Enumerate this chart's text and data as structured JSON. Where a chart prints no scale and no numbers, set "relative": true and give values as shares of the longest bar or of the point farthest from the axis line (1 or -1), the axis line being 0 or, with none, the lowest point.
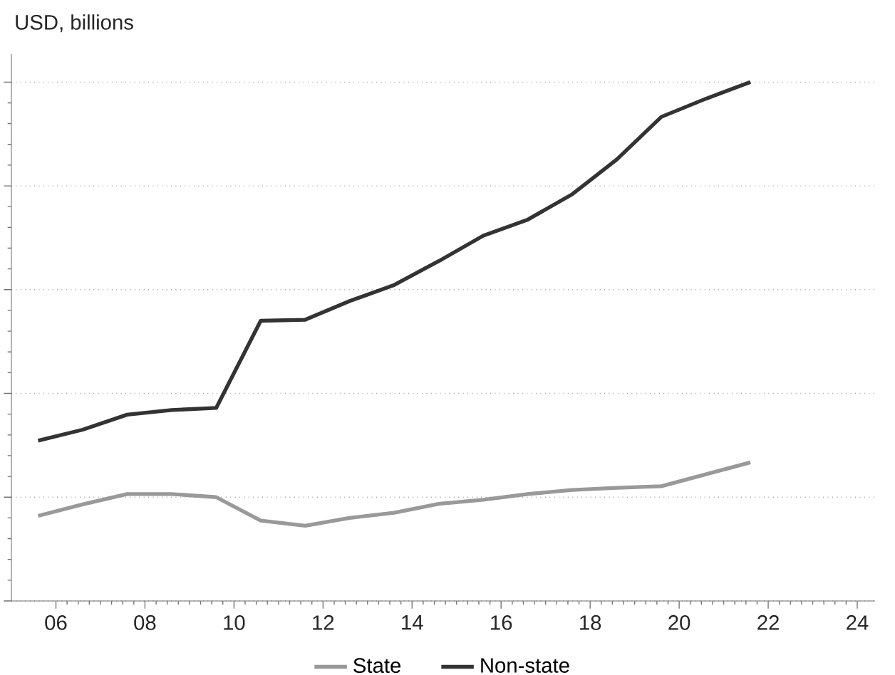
{
  "chart_data": {
    "type": "line",
    "ylabel": "USD, billions",
    "relative": true,
    "x": [
      2005.6,
      2006.6,
      2007.6,
      2008.6,
      2009.6,
      2010.6,
      2011.6,
      2012.6,
      2013.6,
      2014.6,
      2015.6,
      2016.6,
      2017.6,
      2018.6,
      2019.6,
      2020.6,
      2021.6
    ],
    "xlim": [
      2005,
      2024.4
    ],
    "xticks": [
      {
        "value": 2006,
        "label": "06"
      },
      {
        "value": 2008,
        "label": "08"
      },
      {
        "value": 2010,
        "label": "10"
      },
      {
        "value": 2012,
        "label": "12"
      },
      {
        "value": 2014,
        "label": "14"
      },
      {
        "value": 2016,
        "label": "16"
      },
      {
        "value": 2018,
        "label": "18"
      },
      {
        "value": 2020,
        "label": "20"
      },
      {
        "value": 2022,
        "label": "22"
      },
      {
        "value": 2024,
        "label": "24"
      }
    ],
    "series": [
      {
        "name": "State",
        "color": "#999999",
        "values": [
          0.164,
          0.186,
          0.206,
          0.206,
          0.2,
          0.155,
          0.145,
          0.16,
          0.17,
          0.187,
          0.195,
          0.206,
          0.214,
          0.218,
          0.221,
          0.244,
          0.267
        ]
      },
      {
        "name": "Non-state",
        "color": "#333333",
        "values": [
          0.309,
          0.33,
          0.359,
          0.368,
          0.372,
          0.54,
          0.542,
          0.578,
          0.609,
          0.655,
          0.704,
          0.735,
          0.784,
          0.851,
          0.933,
          0.968,
          1
        ]
      }
    ],
    "grid": "y",
    "legend": "bottom",
    "tick_labels": "x",
    "marker": "none",
    "line_style": "solid"
  }
}
